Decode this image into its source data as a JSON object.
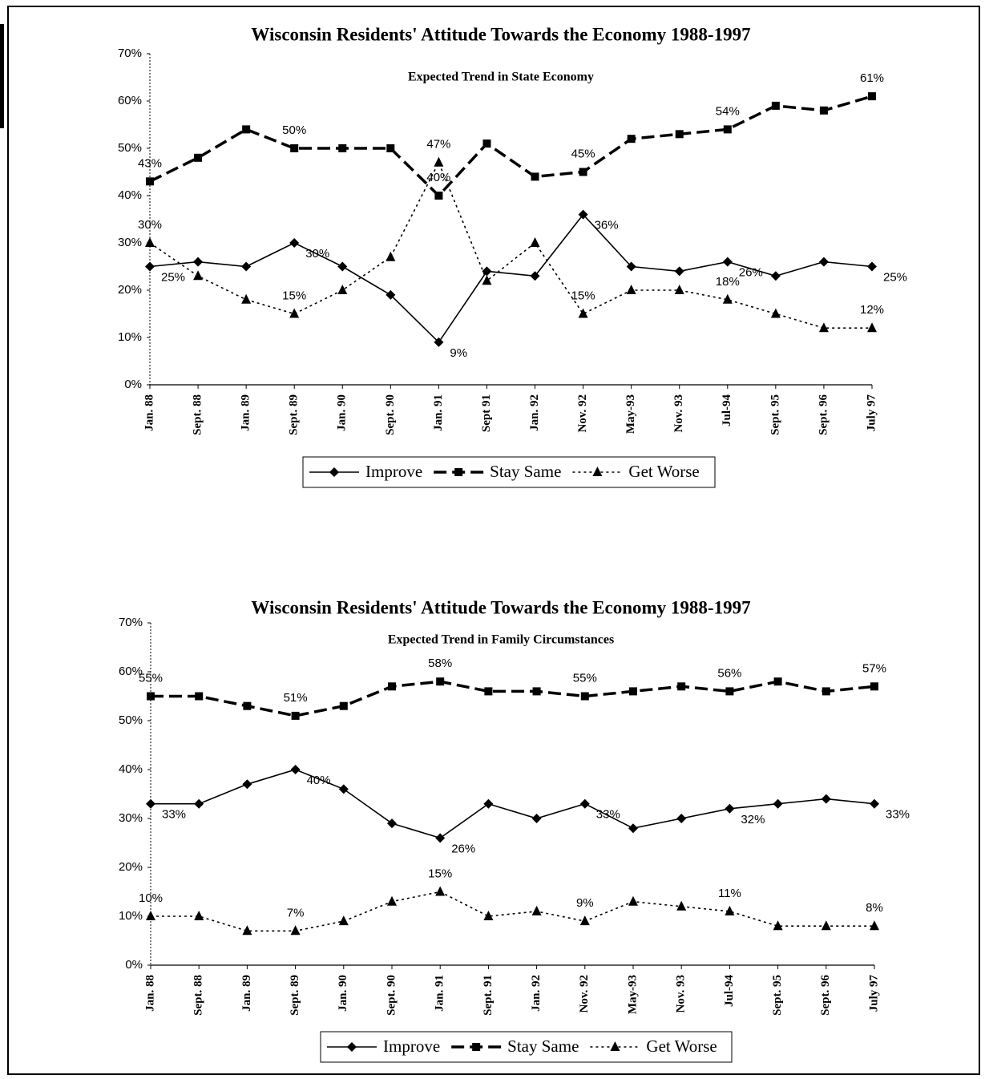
{
  "chart_data": [
    {
      "type": "line",
      "title": "Wisconsin Residents' Attitude Towards the Economy 1988-1997",
      "subtitle": "Expected Trend in State Economy",
      "categories": [
        "Jan. 88",
        "Sept. 88",
        "Jan. 89",
        "Sept. 89",
        "Jan. 90",
        "Sept. 90",
        "Jan. 91",
        "Sept 91",
        "Jan. 92",
        "Nov. 92",
        "May-93",
        "Nov. 93",
        "Jul-94",
        "Sept. 95",
        "Sept. 96",
        "July 97"
      ],
      "ylim": [
        0,
        70
      ],
      "yticks": [
        {
          "value": 0,
          "label": "0%"
        },
        {
          "value": 10,
          "label": "10%"
        },
        {
          "value": 20,
          "label": "20%"
        },
        {
          "value": 30,
          "label": "30%"
        },
        {
          "value": 40,
          "label": "40%"
        },
        {
          "value": 50,
          "label": "50%"
        },
        {
          "value": 60,
          "label": "60%"
        },
        {
          "value": 70,
          "label": "70%"
        }
      ],
      "grid": false,
      "legend": "bottom",
      "series": [
        {
          "name": "Improve",
          "color": "#000000",
          "marker": "diamond",
          "dash": "solid",
          "values": [
            25,
            26,
            25,
            30,
            25,
            19,
            9,
            24,
            23,
            36,
            25,
            24,
            26,
            23,
            26,
            25
          ],
          "value_labels": [
            "25%",
            null,
            null,
            "30%",
            null,
            null,
            "9%",
            null,
            null,
            "36%",
            null,
            null,
            "26%",
            null,
            null,
            "25%"
          ]
        },
        {
          "name": "Stay Same",
          "color": "#000000",
          "marker": "square",
          "dash": "dashed",
          "values": [
            43,
            48,
            54,
            50,
            50,
            50,
            40,
            51,
            44,
            45,
            52,
            53,
            54,
            59,
            58,
            61
          ],
          "value_labels": [
            "43%",
            null,
            null,
            "50%",
            null,
            null,
            "40%",
            null,
            null,
            "45%",
            null,
            null,
            "54%",
            null,
            null,
            "61%"
          ]
        },
        {
          "name": "Get Worse",
          "color": "#000000",
          "marker": "triangle",
          "dash": "dotted",
          "values": [
            30,
            23,
            18,
            15,
            20,
            27,
            47,
            22,
            30,
            15,
            20,
            20,
            18,
            15,
            12,
            12
          ],
          "value_labels": [
            "30%",
            null,
            null,
            "15%",
            null,
            null,
            "47%",
            null,
            null,
            "15%",
            null,
            null,
            "18%",
            null,
            null,
            "12%"
          ]
        }
      ]
    },
    {
      "type": "line",
      "title": "Wisconsin Residents' Attitude Towards the Economy 1988-1997",
      "subtitle": "Expected Trend in Family Circumstances",
      "categories": [
        "Jan. 88",
        "Sept. 88",
        "Jan. 89",
        "Sept. 89",
        "Jan. 90",
        "Sept. 90",
        "Jan. 91",
        "Sept. 91",
        "Jan. 92",
        "Nov. 92",
        "May-93",
        "Nov. 93",
        "Jul-94",
        "Sept. 95",
        "Sept. 96",
        "July 97"
      ],
      "ylim": [
        0,
        70
      ],
      "yticks": [
        {
          "value": 0,
          "label": "0%"
        },
        {
          "value": 10,
          "label": "10%"
        },
        {
          "value": 20,
          "label": "20%"
        },
        {
          "value": 30,
          "label": "30%"
        },
        {
          "value": 40,
          "label": "40%"
        },
        {
          "value": 50,
          "label": "50%"
        },
        {
          "value": 60,
          "label": "60%"
        },
        {
          "value": 70,
          "label": "70%"
        }
      ],
      "grid": false,
      "legend": "bottom",
      "series": [
        {
          "name": "Improve",
          "color": "#000000",
          "marker": "diamond",
          "dash": "solid",
          "values": [
            33,
            33,
            37,
            40,
            36,
            29,
            26,
            33,
            30,
            33,
            28,
            30,
            32,
            33,
            34,
            33
          ],
          "value_labels": [
            "33%",
            null,
            null,
            "40%",
            null,
            null,
            "26%",
            null,
            null,
            "33%",
            null,
            null,
            "32%",
            null,
            null,
            "33%"
          ]
        },
        {
          "name": "Stay Same",
          "color": "#000000",
          "marker": "square",
          "dash": "dashed",
          "values": [
            55,
            55,
            53,
            51,
            53,
            57,
            58,
            56,
            56,
            55,
            56,
            57,
            56,
            58,
            56,
            57
          ],
          "value_labels": [
            "55%",
            null,
            null,
            "51%",
            null,
            null,
            "58%",
            null,
            null,
            "55%",
            null,
            null,
            "56%",
            null,
            null,
            "57%"
          ]
        },
        {
          "name": "Get Worse",
          "color": "#000000",
          "marker": "triangle",
          "dash": "dotted",
          "values": [
            10,
            10,
            7,
            7,
            9,
            13,
            15,
            10,
            11,
            9,
            13,
            12,
            11,
            8,
            8,
            8
          ],
          "value_labels": [
            "10%",
            null,
            null,
            "7%",
            null,
            null,
            "15%",
            null,
            null,
            "9%",
            null,
            null,
            "11%",
            null,
            null,
            "8%"
          ]
        }
      ]
    }
  ]
}
